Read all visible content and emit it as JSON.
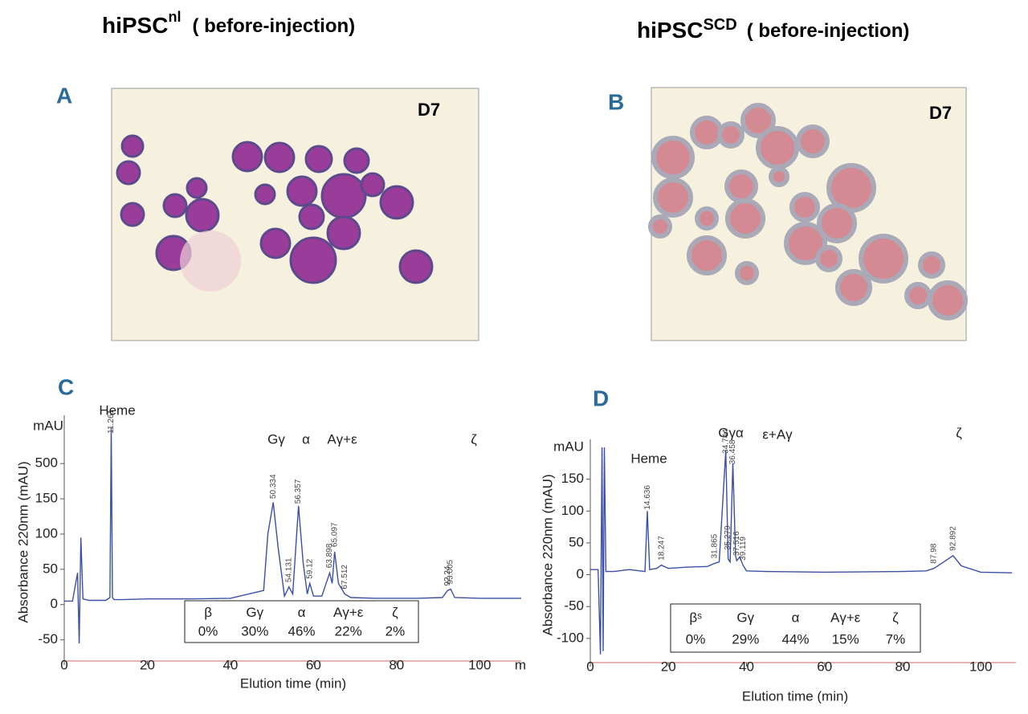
{
  "figure": {
    "columns": [
      {
        "title": "hiPSC",
        "sup": "nl",
        "note": "( before-injection)",
        "panel": "A",
        "day": "D7"
      },
      {
        "title": "hiPSC",
        "sup": "SCD",
        "note": "( before-injection)",
        "panel": "B",
        "day": "D7"
      }
    ]
  },
  "chart_data": [
    {
      "type": "line",
      "label": "C",
      "unit_label": "mAU",
      "y_label": "Absorbance 220nm (mAU)",
      "x_label": "Elution time (min)",
      "x_end_label": "m",
      "yscale": "piecewise",
      "xlim": [
        0,
        110
      ],
      "xticks": [
        0,
        20,
        40,
        60,
        80,
        100
      ],
      "ylim": [
        -80,
        900
      ],
      "yticks": [
        -50,
        0,
        50,
        100,
        150,
        500
      ],
      "peak_names": [
        "Heme",
        "Gγ",
        "α",
        "Aγ+ε",
        "ζ"
      ],
      "peak_times": [
        11.261,
        50.334,
        54.131,
        56.357,
        59.12,
        63.898,
        65.097,
        67.512,
        92.24,
        93.005
      ],
      "composition": {
        "names": [
          "β",
          "Gγ",
          "α",
          "Aγ+ε",
          "ζ"
        ],
        "shares": [
          "0%",
          "30%",
          "46%",
          "22%",
          "2%"
        ]
      },
      "series": [
        {
          "color": "#3b4fa6",
          "x": [
            0,
            2,
            3.2,
            3.6,
            4,
            4.5,
            6,
            10,
            11,
            11.3,
            11.6,
            12,
            14,
            20,
            30,
            40,
            48,
            49,
            50.3,
            51.5,
            53,
            54.1,
            55,
            56.4,
            57.5,
            58.5,
            59.1,
            60,
            62,
            63.9,
            64.5,
            65.1,
            66,
            67.5,
            69,
            75,
            85,
            91,
            92.3,
            93,
            94,
            100,
            110
          ],
          "values": [
            5,
            5,
            45,
            -55,
            95,
            8,
            6,
            6,
            10,
            860,
            10,
            7,
            7,
            8,
            8,
            9,
            20,
            100,
            145,
            80,
            12,
            25,
            15,
            140,
            60,
            15,
            30,
            12,
            12,
            45,
            30,
            75,
            30,
            15,
            10,
            9,
            9,
            10,
            20,
            22,
            10,
            9,
            9
          ]
        }
      ]
    },
    {
      "type": "line",
      "label": "D",
      "unit_label": "mAU",
      "y_label": "Absorbance 220nm (mAU)",
      "x_label": "Elution time (min)",
      "yscale": "linear",
      "xlim": [
        0,
        109
      ],
      "xticks": [
        0,
        20,
        40,
        60,
        80,
        100
      ],
      "ylim": [
        -138,
        200
      ],
      "yticks": [
        -100,
        -50,
        0,
        50,
        100,
        150
      ],
      "peak_names": [
        "Heme",
        "Gγα",
        "ε+Aγ",
        "ζ"
      ],
      "peak_times": [
        14.636,
        18.247,
        31.865,
        34.744,
        35.279,
        36.458,
        37.516,
        39.119,
        87.98,
        92.892
      ],
      "composition": {
        "names": [
          "βˢ",
          "Gγ",
          "α",
          "Aγ+ε",
          "ζ"
        ],
        "shares": [
          "0%",
          "29%",
          "44%",
          "15%",
          "7%"
        ]
      },
      "series": [
        {
          "color": "#3b4fa6",
          "x": [
            0,
            2,
            2.6,
            3,
            3.3,
            3.6,
            4,
            6,
            10,
            14,
            14.6,
            15.2,
            17,
            18.2,
            20,
            25,
            30,
            31.9,
            33,
            34.7,
            35.3,
            35.8,
            36.5,
            37.2,
            37.5,
            38.3,
            39.1,
            40,
            45,
            60,
            80,
            86,
            88,
            90,
            92.9,
            95,
            100,
            108
          ],
          "values": [
            8,
            8,
            -125,
            200,
            -120,
            200,
            5,
            5,
            8,
            5,
            100,
            8,
            10,
            15,
            10,
            12,
            13,
            18,
            20,
            195,
            25,
            20,
            175,
            30,
            22,
            28,
            15,
            6,
            5,
            4,
            5,
            6,
            10,
            18,
            30,
            14,
            4,
            3
          ]
        }
      ]
    }
  ]
}
